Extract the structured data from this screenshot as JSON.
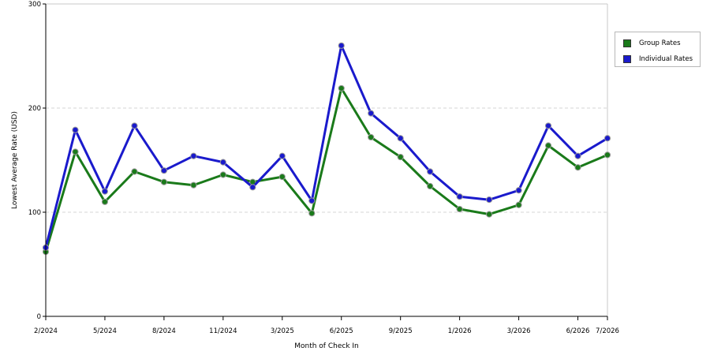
{
  "chart_data": {
    "type": "line",
    "xlabel": "Month of Check In",
    "ylabel": "Lowest Average Rate (USD)",
    "ylim": [
      0,
      300
    ],
    "yticks": [
      0,
      100,
      200,
      300
    ],
    "x_tick_labels": [
      "2/2024",
      "5/2024",
      "8/2024",
      "11/2024",
      "3/2025",
      "6/2025",
      "9/2025",
      "1/2026",
      "3/2026",
      "6/2026",
      "7/2026"
    ],
    "x": [
      "2/2024",
      "3/2024",
      "5/2024",
      "6/2024",
      "8/2024",
      "10/2024",
      "11/2024",
      "12/2024",
      "3/2025",
      "4/2025",
      "6/2025",
      "7/2025",
      "9/2025",
      "11/2025",
      "1/2026",
      "2/2026",
      "3/2026",
      "4/2026",
      "6/2026",
      "7/2026"
    ],
    "grid": "horizontal dashed",
    "legend_position": "right",
    "series": [
      {
        "name": "Group Rates",
        "color": "#1a7a1a",
        "values": [
          62,
          158,
          110,
          139,
          129,
          126,
          136,
          129,
          134,
          99,
          219,
          172,
          153,
          125,
          103,
          98,
          107,
          164,
          143,
          155
        ]
      },
      {
        "name": "Individual Rates",
        "color": "#1a1acc",
        "values": [
          66,
          179,
          120,
          183,
          140,
          154,
          148,
          124,
          154,
          111,
          260,
          195,
          171,
          139,
          115,
          112,
          121,
          183,
          154,
          171
        ]
      }
    ]
  }
}
